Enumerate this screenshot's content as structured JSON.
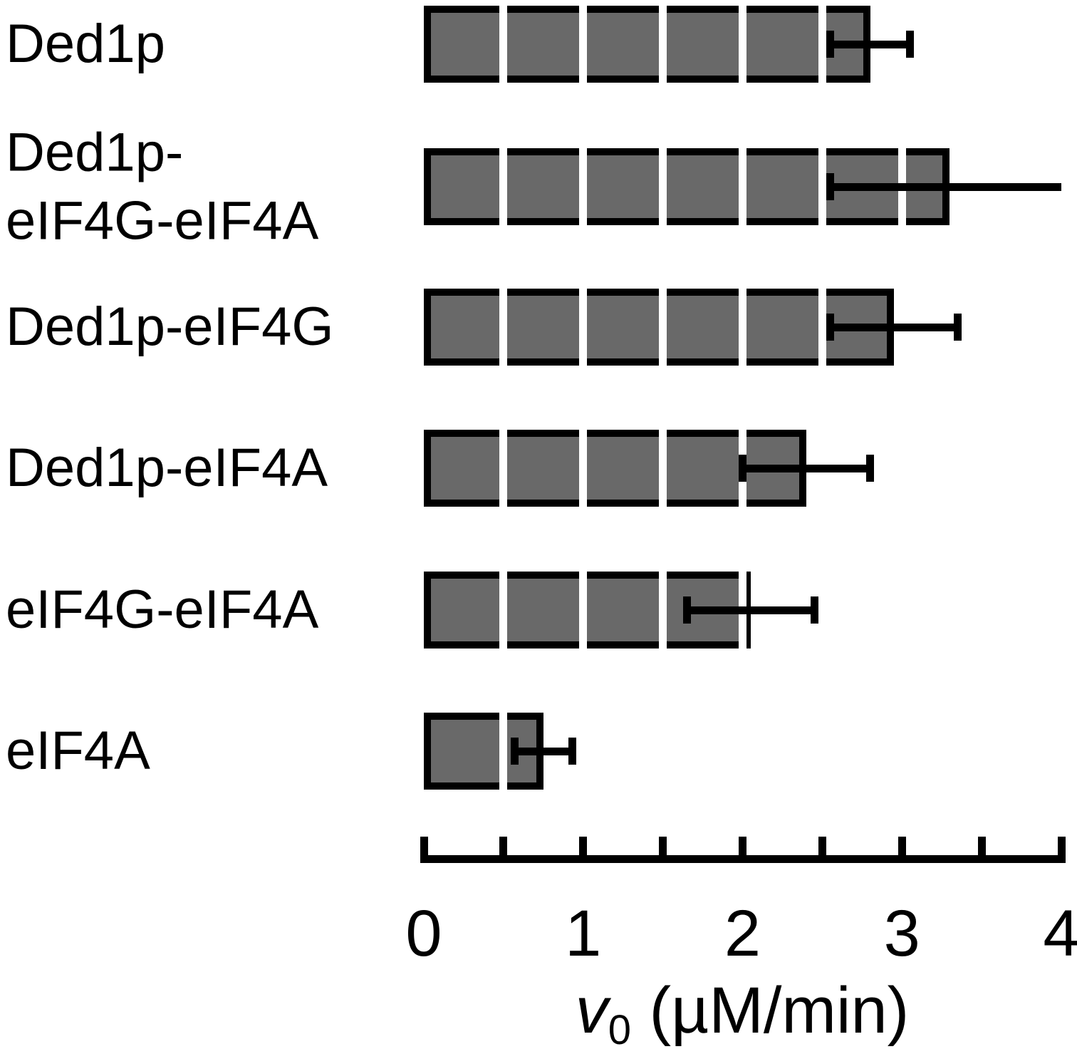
{
  "chart_data": {
    "type": "bar",
    "orientation": "horizontal",
    "title": "",
    "categories": [
      "Ded1p",
      "Ded1p-\neIF4G-eIF4A",
      "Ded1p-eIF4G",
      "Ded1p-eIF4A",
      "eIF4G-eIF4A",
      "eIF4A"
    ],
    "values": [
      2.8,
      3.3,
      2.95,
      2.4,
      2.05,
      0.75
    ],
    "errors": [
      0.25,
      0.75,
      0.4,
      0.4,
      0.4,
      0.18
    ],
    "error_style": "symmetric, black caps, upper whisker of second bar clipped at axis max",
    "xlabel_parts": {
      "var": "v",
      "sub": "0",
      "rest": " (µM/min)"
    },
    "xlim": [
      0,
      4
    ],
    "xtick_labels": [
      "0",
      "1",
      "2",
      "3",
      "4"
    ],
    "minor_tick_step": 0.5,
    "grid": "white vertical stripes over bars every 0.5 units",
    "colors": {
      "bar_fill": "#696969",
      "bar_border": "#000000",
      "axis": "#000000",
      "background": "#ffffff"
    }
  }
}
